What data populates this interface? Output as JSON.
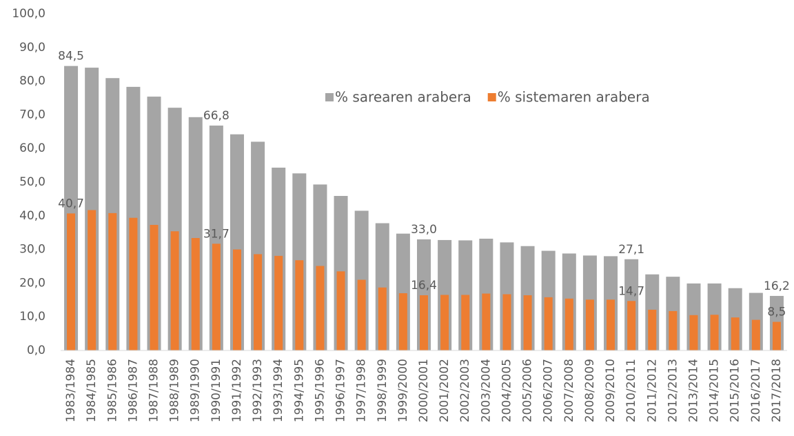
{
  "chart_data": {
    "type": "bar",
    "categories": [
      "1983/1984",
      "1984/1985",
      "1985/1986",
      "1986/1987",
      "1987/1988",
      "1988/1989",
      "1989/1990",
      "1990/1991",
      "1991/1992",
      "1992/1993",
      "1993/1994",
      "1994/1995",
      "1995/1996",
      "1996/1997",
      "1997/1998",
      "1998/1999",
      "1999/2000",
      "2000/2001",
      "2001/2002",
      "2002/2003",
      "2003/2004",
      "2004/2005",
      "2005/2006",
      "2006/2007",
      "2007/2008",
      "2008/2009",
      "2009/2010",
      "2010/2011",
      "2011/2012",
      "2012/2013",
      "2013/2014",
      "2014/2015",
      "2015/2016",
      "2016/2017",
      "2017/2018"
    ],
    "series": [
      {
        "name": "% sarearen arabera",
        "color": "#a5a5a5",
        "values": [
          84.5,
          84.0,
          80.9,
          78.3,
          75.4,
          72.1,
          69.3,
          66.8,
          64.2,
          62.0,
          54.3,
          52.6,
          49.3,
          45.9,
          41.5,
          37.8,
          34.7,
          33.0,
          32.8,
          32.7,
          33.2,
          32.1,
          31.0,
          29.6,
          28.8,
          28.2,
          28.0,
          27.1,
          22.6,
          21.9,
          19.9,
          19.9,
          18.5,
          17.1,
          16.2
        ],
        "value_labels": [
          "84,5",
          null,
          null,
          null,
          null,
          null,
          null,
          "66,8",
          null,
          null,
          null,
          null,
          null,
          null,
          null,
          null,
          null,
          "33,0",
          null,
          null,
          null,
          null,
          null,
          null,
          null,
          null,
          null,
          "27,1",
          null,
          null,
          null,
          null,
          null,
          null,
          "16,2"
        ]
      },
      {
        "name": "% sistemaren arabera",
        "color": "#ed7d31",
        "values": [
          40.7,
          41.7,
          40.8,
          39.4,
          37.3,
          35.4,
          33.4,
          31.7,
          30.0,
          28.6,
          28.1,
          26.8,
          25.1,
          23.5,
          21.0,
          18.7,
          17.0,
          16.4,
          16.5,
          16.5,
          16.9,
          16.7,
          16.4,
          15.8,
          15.4,
          15.1,
          15.1,
          14.7,
          12.1,
          11.7,
          10.5,
          10.6,
          9.8,
          9.1,
          8.5
        ],
        "value_labels": [
          "40,7",
          null,
          null,
          null,
          null,
          null,
          null,
          "31,7",
          null,
          null,
          null,
          null,
          null,
          null,
          null,
          null,
          null,
          "16,4",
          null,
          null,
          null,
          null,
          null,
          null,
          null,
          null,
          null,
          "14,7",
          null,
          null,
          null,
          null,
          null,
          null,
          "8,5"
        ]
      }
    ],
    "ylim": [
      0,
      100
    ],
    "yticks": [
      {
        "value": 0,
        "label": "0,0"
      },
      {
        "value": 10,
        "label": "10,0"
      },
      {
        "value": 20,
        "label": "20,0"
      },
      {
        "value": 30,
        "label": "30,0"
      },
      {
        "value": 40,
        "label": "40,0"
      },
      {
        "value": 50,
        "label": "50,0"
      },
      {
        "value": 60,
        "label": "60,0"
      },
      {
        "value": 70,
        "label": "70,0"
      },
      {
        "value": 80,
        "label": "80,0"
      },
      {
        "value": 90,
        "label": "90,0"
      },
      {
        "value": 100,
        "label": "100,0"
      }
    ],
    "grid": false,
    "legend": "top-right"
  }
}
